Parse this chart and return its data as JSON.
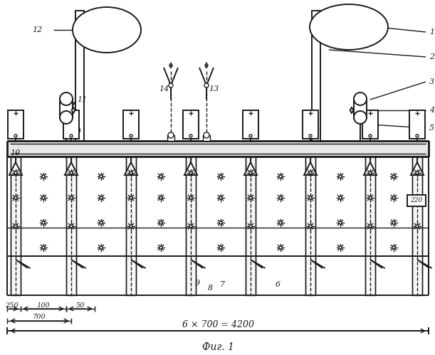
{
  "fig_label": "Фиг. 1",
  "dim_label": "6 × 700 = 4200",
  "bg_color": "#ffffff",
  "line_color": "#1a1a1a",
  "figsize": [
    6.11,
    4.99
  ],
  "dpi": 100
}
